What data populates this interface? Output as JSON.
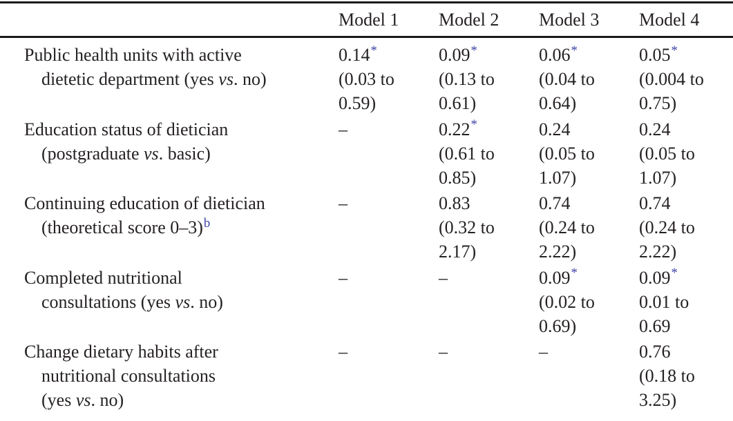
{
  "colors": {
    "text": "#252122",
    "rule": "#1b1819",
    "accent_blue": "#4145a8",
    "background": "#ffffff"
  },
  "table": {
    "column_headers": [
      "Model 1",
      "Model 2",
      "Model 3",
      "Model 4"
    ],
    "dash": "–",
    "star": "*",
    "footnote_marker": "b",
    "rows": [
      {
        "label_lines": [
          [
            {
              "t": "Public health units with active"
            }
          ],
          [
            {
              "t": "dietetic department (yes "
            },
            {
              "t": "vs",
              "s": "i"
            },
            {
              "t": ". no)"
            }
          ]
        ],
        "cells": [
          {
            "lines": [
              [
                {
                  "t": "0.14"
                },
                {
                  "t": "*",
                  "s": "sup"
                }
              ],
              [
                {
                  "t": "(0.03 to"
                }
              ],
              [
                {
                  "t": "0.59)"
                }
              ]
            ]
          },
          {
            "lines": [
              [
                {
                  "t": "0.09"
                },
                {
                  "t": "*",
                  "s": "sup"
                }
              ],
              [
                {
                  "t": "(0.13 to"
                }
              ],
              [
                {
                  "t": "0.61)"
                }
              ]
            ]
          },
          {
            "lines": [
              [
                {
                  "t": "0.06"
                },
                {
                  "t": "*",
                  "s": "sup"
                }
              ],
              [
                {
                  "t": "(0.04 to"
                }
              ],
              [
                {
                  "t": "0.64)"
                }
              ]
            ]
          },
          {
            "lines": [
              [
                {
                  "t": "0.05"
                },
                {
                  "t": "*",
                  "s": "sup"
                }
              ],
              [
                {
                  "t": "(0.004 to"
                }
              ],
              [
                {
                  "t": "0.75)"
                }
              ]
            ]
          }
        ]
      },
      {
        "label_lines": [
          [
            {
              "t": "Education status of dietician"
            }
          ],
          [
            {
              "t": "(postgraduate "
            },
            {
              "t": "vs",
              "s": "i"
            },
            {
              "t": ". basic)"
            }
          ]
        ],
        "cells": [
          {
            "lines": [
              [
                {
                  "t": "–"
                }
              ]
            ]
          },
          {
            "lines": [
              [
                {
                  "t": "0.22"
                },
                {
                  "t": "*",
                  "s": "sup"
                }
              ],
              [
                {
                  "t": "(0.61 to"
                }
              ],
              [
                {
                  "t": "0.85)"
                }
              ]
            ]
          },
          {
            "lines": [
              [
                {
                  "t": "0.24"
                }
              ],
              [
                {
                  "t": "(0.05 to"
                }
              ],
              [
                {
                  "t": "1.07)"
                }
              ]
            ]
          },
          {
            "lines": [
              [
                {
                  "t": "0.24"
                }
              ],
              [
                {
                  "t": "(0.05 to"
                }
              ],
              [
                {
                  "t": "1.07)"
                }
              ]
            ]
          }
        ]
      },
      {
        "label_lines": [
          [
            {
              "t": "Continuing education of dietician"
            }
          ],
          [
            {
              "t": "(theoretical score 0–3)"
            },
            {
              "t": "b",
              "s": "sup"
            }
          ]
        ],
        "cells": [
          {
            "lines": [
              [
                {
                  "t": "–"
                }
              ]
            ]
          },
          {
            "lines": [
              [
                {
                  "t": "0.83"
                }
              ],
              [
                {
                  "t": "(0.32 to"
                }
              ],
              [
                {
                  "t": "2.17)"
                }
              ]
            ]
          },
          {
            "lines": [
              [
                {
                  "t": "0.74"
                }
              ],
              [
                {
                  "t": "(0.24 to"
                }
              ],
              [
                {
                  "t": "2.22)"
                }
              ]
            ]
          },
          {
            "lines": [
              [
                {
                  "t": "0.74"
                }
              ],
              [
                {
                  "t": "(0.24 to"
                }
              ],
              [
                {
                  "t": "2.22)"
                }
              ]
            ]
          }
        ]
      },
      {
        "label_lines": [
          [
            {
              "t": "Completed nutritional"
            }
          ],
          [
            {
              "t": "consultations (yes "
            },
            {
              "t": "vs",
              "s": "i"
            },
            {
              "t": ". no)"
            }
          ]
        ],
        "cells": [
          {
            "lines": [
              [
                {
                  "t": "–"
                }
              ]
            ]
          },
          {
            "lines": [
              [
                {
                  "t": "–"
                }
              ]
            ]
          },
          {
            "lines": [
              [
                {
                  "t": "0.09"
                },
                {
                  "t": "*",
                  "s": "sup"
                }
              ],
              [
                {
                  "t": "(0.02 to"
                }
              ],
              [
                {
                  "t": "0.69)"
                }
              ]
            ]
          },
          {
            "lines": [
              [
                {
                  "t": "0.09"
                },
                {
                  "t": "*",
                  "s": "sup"
                }
              ],
              [
                {
                  "t": "0.01 to"
                }
              ],
              [
                {
                  "t": "0.69"
                }
              ]
            ]
          }
        ]
      },
      {
        "label_lines": [
          [
            {
              "t": "Change dietary habits after"
            }
          ],
          [
            {
              "t": "nutritional consultations"
            }
          ],
          [
            {
              "t": "(yes "
            },
            {
              "t": "vs",
              "s": "i"
            },
            {
              "t": ". no)"
            }
          ]
        ],
        "cells": [
          {
            "lines": [
              [
                {
                  "t": "–"
                }
              ]
            ]
          },
          {
            "lines": [
              [
                {
                  "t": "–"
                }
              ]
            ]
          },
          {
            "lines": [
              [
                {
                  "t": "–"
                }
              ]
            ]
          },
          {
            "lines": [
              [
                {
                  "t": "0.76"
                }
              ],
              [
                {
                  "t": "(0.18 to"
                }
              ],
              [
                {
                  "t": "3.25)"
                }
              ]
            ]
          }
        ]
      }
    ]
  }
}
